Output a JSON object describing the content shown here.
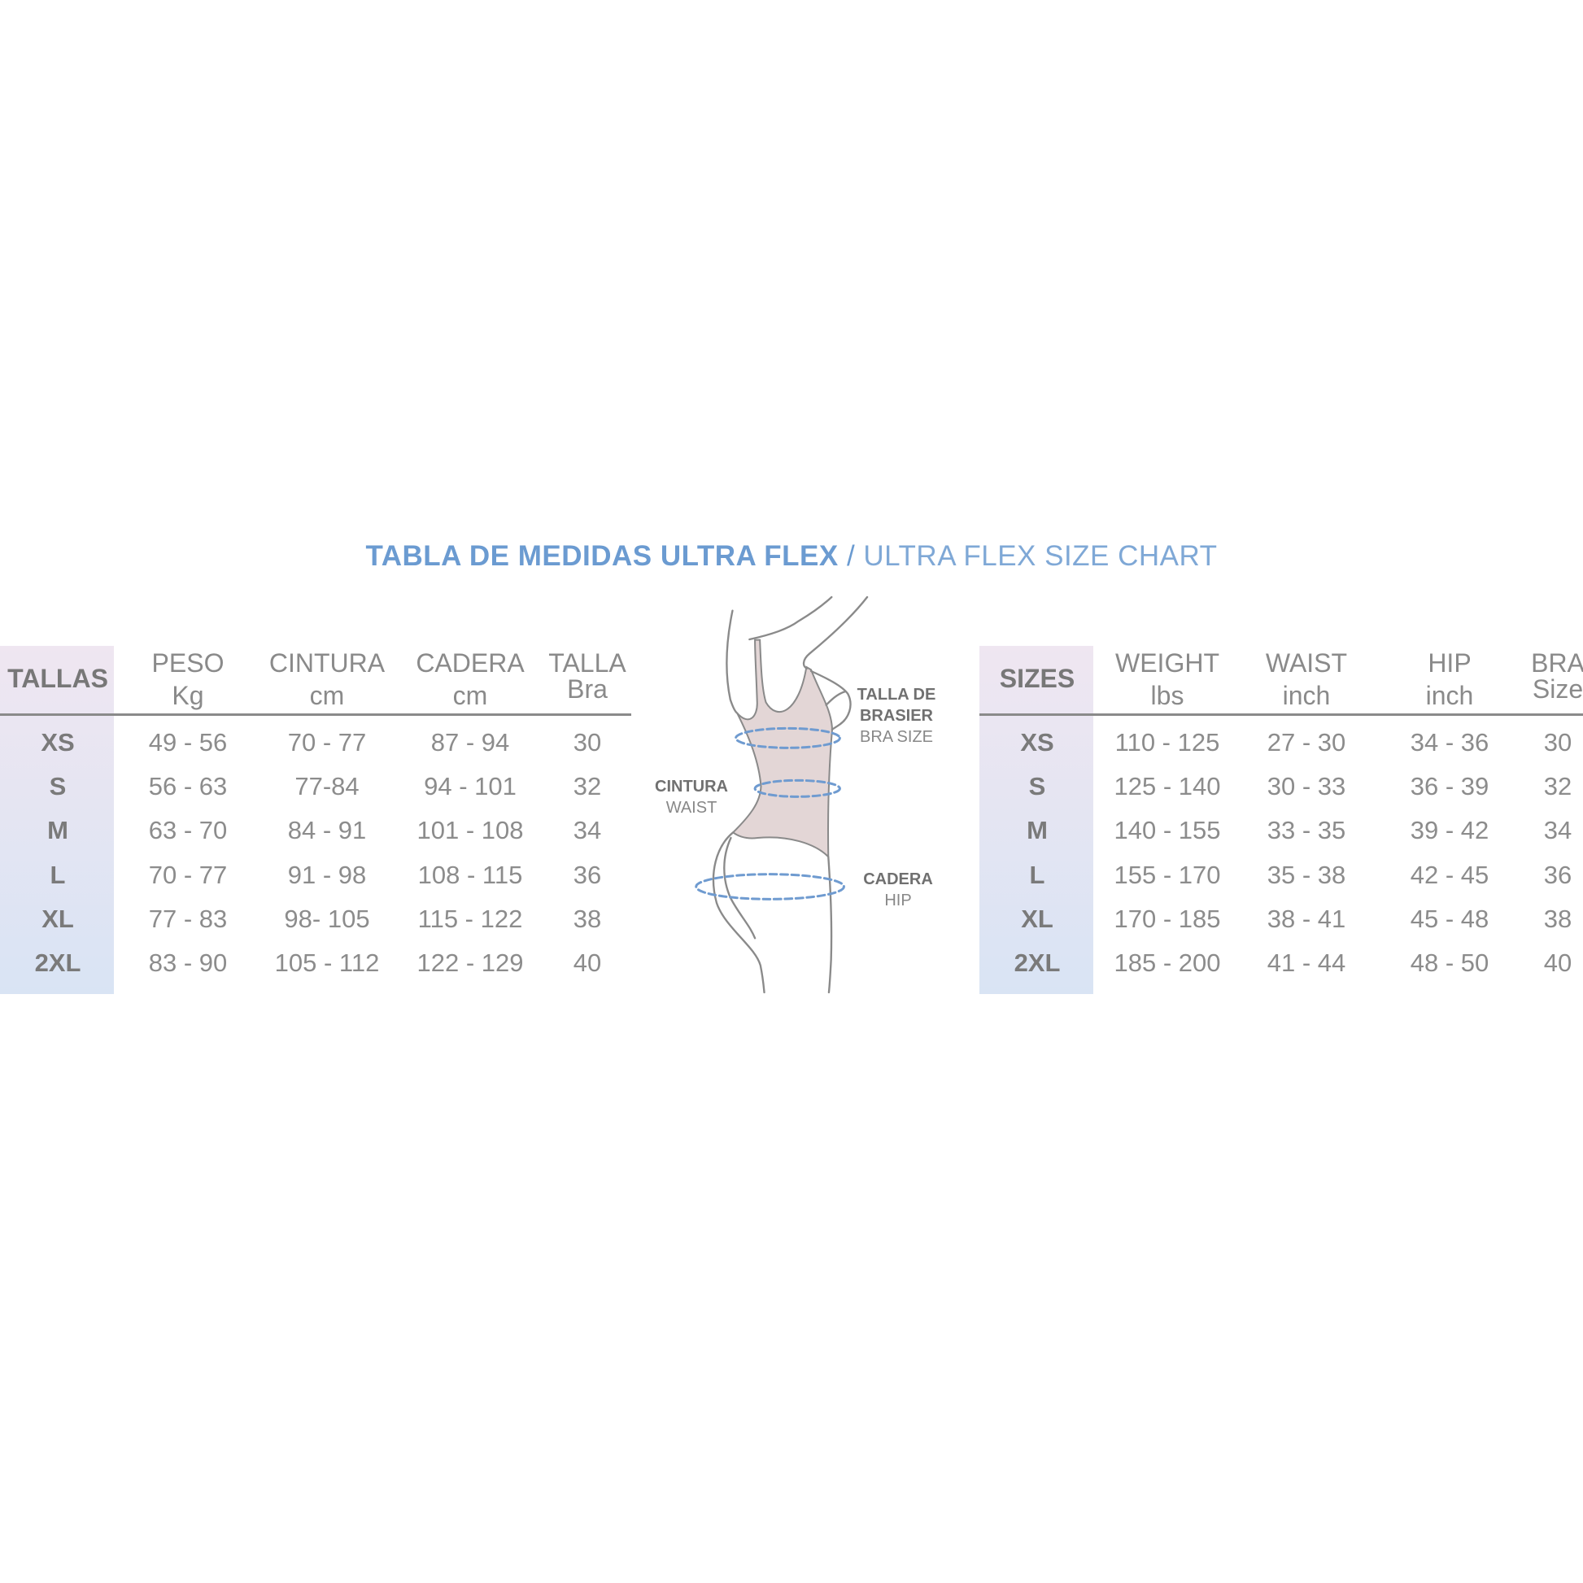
{
  "title": {
    "bold": "TABLA DE MEDIDAS ULTRA FLEX",
    "separator": "/",
    "light": "ULTRA FLEX SIZE CHART",
    "color": "#6b9bd1"
  },
  "colors": {
    "shade_top": "#efe6f1",
    "shade_bottom": "#d9e4f4",
    "text": "#858585",
    "dashed_line": "#6f9bd0",
    "body_fill": "#e3d6d6"
  },
  "table_es": {
    "size_header": "TALLAS",
    "headers": [
      {
        "label": "PESO",
        "unit": "Kg"
      },
      {
        "label": "CINTURA",
        "unit": "cm"
      },
      {
        "label": "CADERA",
        "unit": "cm"
      },
      {
        "label": "TALLA",
        "unit": "Bra"
      }
    ],
    "rows": [
      {
        "size": "XS",
        "values": [
          "49 - 56",
          "70 - 77",
          "87 - 94",
          "30"
        ]
      },
      {
        "size": "S",
        "values": [
          "56 - 63",
          "77-84",
          "94 - 101",
          "32"
        ]
      },
      {
        "size": "M",
        "values": [
          "63 - 70",
          "84 - 91",
          "101 - 108",
          "34"
        ]
      },
      {
        "size": "L",
        "values": [
          "70 - 77",
          "91 - 98",
          "108 - 115",
          "36"
        ]
      },
      {
        "size": "XL",
        "values": [
          "77 - 83",
          "98- 105",
          "115 - 122",
          "38"
        ]
      },
      {
        "size": "2XL",
        "values": [
          "83 - 90",
          "105 - 112",
          "122 - 129",
          "40"
        ]
      }
    ]
  },
  "table_en": {
    "size_header": "SIZES",
    "headers": [
      {
        "label": "WEIGHT",
        "unit": "lbs"
      },
      {
        "label": "WAIST",
        "unit": "inch"
      },
      {
        "label": "HIP",
        "unit": "inch"
      },
      {
        "label": "BRA",
        "unit": "Size"
      }
    ],
    "rows": [
      {
        "size": "XS",
        "values": [
          "110 - 125",
          "27 - 30",
          "34 - 36",
          "30"
        ]
      },
      {
        "size": "S",
        "values": [
          "125 - 140",
          "30 - 33",
          "36 - 39",
          "32"
        ]
      },
      {
        "size": "M",
        "values": [
          "140 - 155",
          "33 - 35",
          "39 - 42",
          "34"
        ]
      },
      {
        "size": "L",
        "values": [
          "155 - 170",
          "35 - 38",
          "42 - 45",
          "36"
        ]
      },
      {
        "size": "XL",
        "values": [
          "170 - 185",
          "38 - 41",
          "45 - 48",
          "38"
        ]
      },
      {
        "size": "2XL",
        "values": [
          "185 - 200",
          "41 - 44",
          "48 - 50",
          "40"
        ]
      }
    ]
  },
  "figure": {
    "bra_label": {
      "es": "TALLA DE BRASIER",
      "es_line1": "TALLA DE",
      "es_line2": "BRASIER",
      "en": "BRA SIZE"
    },
    "waist_label": {
      "es": "CINTURA",
      "en": "WAIST"
    },
    "hip_label": {
      "es": "CADERA",
      "en": "HIP"
    }
  }
}
